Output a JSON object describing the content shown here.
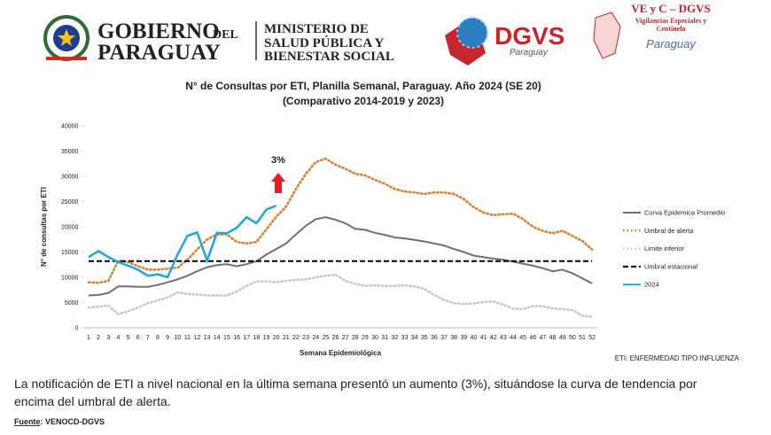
{
  "header": {
    "gov_1": "GOBIERNO",
    "gov_2": "DEL",
    "gov_3": "PARAGUAY",
    "ministry": [
      "MINISTERIO DE",
      "SALUD PÚBLICA Y",
      "BIENESTAR SOCIAL"
    ],
    "dgvs": "DGVS",
    "dgvs_sub": "Paraguay",
    "vec_title": "VE y C – DGVS",
    "vec_lines": [
      "Vigilancias Especiales y",
      "Centinela"
    ],
    "vec_sub": "Paraguay"
  },
  "chart_data": {
    "type": "line",
    "title": "N° de Consultas por ETI, Planilla Semanal, Paraguay. Año 2024  (SE 20)",
    "subtitle": "(Comparativo 2014-2019 y 2023)",
    "x_label": "Semana Epidemiológica",
    "y_label": "N° de consultas por ETI",
    "annotation": "3%",
    "categories": [
      1,
      2,
      3,
      4,
      5,
      6,
      7,
      8,
      9,
      10,
      11,
      12,
      13,
      14,
      15,
      16,
      17,
      18,
      19,
      20,
      21,
      22,
      23,
      24,
      25,
      26,
      27,
      28,
      29,
      30,
      31,
      32,
      33,
      34,
      35,
      36,
      37,
      38,
      39,
      40,
      41,
      42,
      43,
      44,
      45,
      46,
      47,
      48,
      49,
      50,
      51,
      52
    ],
    "ylim": [
      0,
      40000
    ],
    "yticks": [
      0,
      5000,
      10000,
      15000,
      20000,
      25000,
      30000,
      35000,
      40000
    ],
    "legend": "right",
    "series": [
      {
        "name": "Curva Epidemica Promedio",
        "color": "#707070",
        "style": "solid",
        "values": [
          6400,
          6500,
          6900,
          8200,
          8200,
          8100,
          8100,
          8500,
          9000,
          9600,
          10300,
          11200,
          12000,
          12400,
          12600,
          12200,
          12600,
          13200,
          14500,
          15600,
          16700,
          18500,
          20200,
          21500,
          21900,
          21400,
          20700,
          19600,
          19400,
          18800,
          18400,
          17900,
          17700,
          17400,
          17100,
          16700,
          16300,
          15600,
          15000,
          14300,
          14000,
          13700,
          13500,
          13100,
          12700,
          12300,
          11800,
          11200,
          11500,
          10800,
          9800,
          8800
        ]
      },
      {
        "name": "Umbral de alerta",
        "color": "#e07b2a",
        "style": "dotted",
        "values": [
          9000,
          8900,
          9300,
          13300,
          13000,
          12200,
          11500,
          11500,
          11700,
          11900,
          13500,
          15500,
          17500,
          18500,
          18500,
          17000,
          16700,
          17000,
          19500,
          22000,
          24000,
          27500,
          30500,
          32800,
          33500,
          32300,
          31500,
          30500,
          30200,
          29300,
          28500,
          27500,
          27000,
          26800,
          26500,
          26800,
          26800,
          26500,
          25500,
          23900,
          22800,
          22300,
          22500,
          22600,
          21500,
          20000,
          19200,
          18700,
          19200,
          18200,
          17200,
          15500
        ]
      },
      {
        "name": "Limite inferior",
        "color": "#c8c8c8",
        "style": "dotted",
        "values": [
          4000,
          4200,
          4400,
          2700,
          3300,
          4000,
          4900,
          5400,
          6000,
          7000,
          6700,
          6600,
          6400,
          6400,
          6400,
          7200,
          8300,
          9200,
          9200,
          9000,
          9300,
          9500,
          9600,
          10000,
          10300,
          10500,
          9300,
          8700,
          8300,
          8400,
          8300,
          8300,
          8400,
          8200,
          7700,
          6500,
          5500,
          4900,
          4700,
          4800,
          5100,
          5200,
          4600,
          3800,
          3700,
          4300,
          4300,
          3800,
          3700,
          3500,
          2400,
          2200
        ]
      },
      {
        "name": "Umbral estacional",
        "color": "#000000",
        "style": "dashed",
        "values": [
          13200,
          13200,
          13200,
          13200,
          13200,
          13200,
          13200,
          13200,
          13200,
          13200,
          13200,
          13200,
          13200,
          13200,
          13200,
          13200,
          13200,
          13200,
          13200,
          13200,
          13200,
          13200,
          13200,
          13200,
          13200,
          13200,
          13200,
          13200,
          13200,
          13200,
          13200,
          13200,
          13200,
          13200,
          13200,
          13200,
          13200,
          13200,
          13200,
          13200,
          13200,
          13200,
          13200,
          13200,
          13200,
          13200,
          13200,
          13200,
          13200,
          13200,
          13200,
          13200
        ]
      },
      {
        "name": "2024",
        "color": "#1aa7e0",
        "style": "solid",
        "values": [
          14000,
          15200,
          14000,
          13000,
          12300,
          11500,
          10300,
          10600,
          10000,
          14500,
          18200,
          18900,
          13300,
          18800,
          18700,
          19800,
          21900,
          20700,
          23400,
          24200,
          null,
          null,
          null,
          null,
          null,
          null,
          null,
          null,
          null,
          null,
          null,
          null,
          null,
          null,
          null,
          null,
          null,
          null,
          null,
          null,
          null,
          null,
          null,
          null,
          null,
          null,
          null,
          null,
          null,
          null,
          null,
          null
        ]
      }
    ]
  },
  "note": "ETI: ENFERMEDAD TIPO INFLUENZA",
  "text": [
    "La notificación de ETI a nivel nacional en la última semana presentó un aumento (3%), situándose la curva de tendencia por",
    "encima del umbral de alerta."
  ],
  "source": {
    "label": "Fuente",
    "value": ": VENOCD-DGVS"
  }
}
